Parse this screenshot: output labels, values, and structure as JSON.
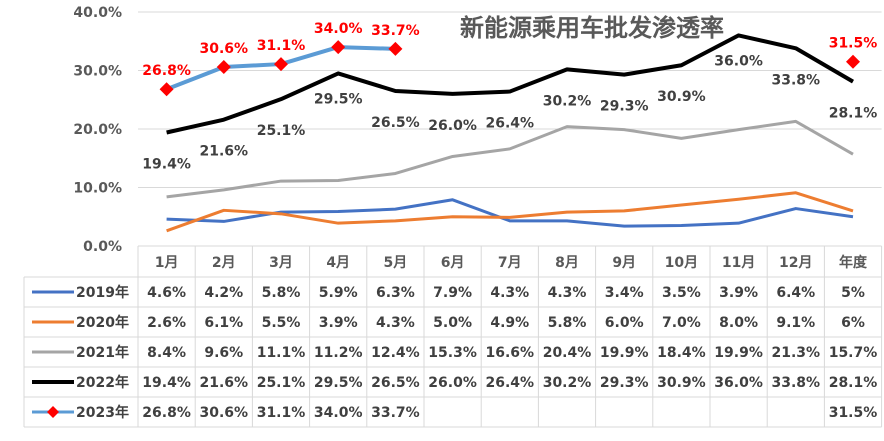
{
  "chart_data": {
    "type": "line",
    "title": "新能源乘用车批发渗透率",
    "categories": [
      "1月",
      "2月",
      "3月",
      "4月",
      "5月",
      "6月",
      "7月",
      "8月",
      "9月",
      "10月",
      "11月",
      "12月",
      "年度"
    ],
    "ylim": [
      0,
      40
    ],
    "yticks": [
      "0.0%",
      "10.0%",
      "20.0%",
      "30.0%",
      "40.0%"
    ],
    "grid": true,
    "legend": "table-left",
    "series": [
      {
        "name": "2019年",
        "color": "#4472C4",
        "values": [
          4.6,
          4.2,
          5.8,
          5.9,
          6.3,
          7.9,
          4.3,
          4.3,
          3.4,
          3.5,
          3.9,
          6.4,
          5
        ],
        "labels": [
          "4.6%",
          "4.2%",
          "5.8%",
          "5.9%",
          "6.3%",
          "7.9%",
          "4.3%",
          "4.3%",
          "3.4%",
          "3.5%",
          "3.9%",
          "6.4%",
          "5%"
        ]
      },
      {
        "name": "2020年",
        "color": "#ED7D31",
        "values": [
          2.6,
          6.1,
          5.5,
          3.9,
          4.3,
          5.0,
          4.9,
          5.8,
          6.0,
          7.0,
          8.0,
          9.1,
          6
        ],
        "labels": [
          "2.6%",
          "6.1%",
          "5.5%",
          "3.9%",
          "4.3%",
          "5.0%",
          "4.9%",
          "5.8%",
          "6.0%",
          "7.0%",
          "8.0%",
          "9.1%",
          "6%"
        ]
      },
      {
        "name": "2021年",
        "color": "#A5A5A5",
        "values": [
          8.4,
          9.6,
          11.1,
          11.2,
          12.4,
          15.3,
          16.6,
          20.4,
          19.9,
          18.4,
          19.9,
          21.3,
          15.7
        ],
        "labels": [
          "8.4%",
          "9.6%",
          "11.1%",
          "11.2%",
          "12.4%",
          "15.3%",
          "16.6%",
          "20.4%",
          "19.9%",
          "18.4%",
          "19.9%",
          "21.3%",
          "15.7%"
        ]
      },
      {
        "name": "2022年",
        "color": "#000000",
        "values": [
          19.4,
          21.6,
          25.1,
          29.5,
          26.5,
          26.0,
          26.4,
          30.2,
          29.3,
          30.9,
          36.0,
          33.8,
          28.1
        ],
        "labels": [
          "19.4%",
          "21.6%",
          "25.1%",
          "29.5%",
          "26.5%",
          "26.0%",
          "26.4%",
          "30.2%",
          "29.3%",
          "30.9%",
          "36.0%",
          "33.8%",
          "28.1%"
        ]
      },
      {
        "name": "2023年",
        "color": "#5B9BD5",
        "marker_color": "#FF0000",
        "values": [
          26.8,
          30.6,
          31.1,
          34.0,
          33.7,
          null,
          null,
          null,
          null,
          null,
          null,
          null,
          31.5
        ],
        "labels": [
          "26.8%",
          "30.6%",
          "31.1%",
          "34.0%",
          "33.7%",
          "",
          "",
          "",
          "",
          "",
          "",
          "",
          "31.5%"
        ]
      }
    ]
  }
}
